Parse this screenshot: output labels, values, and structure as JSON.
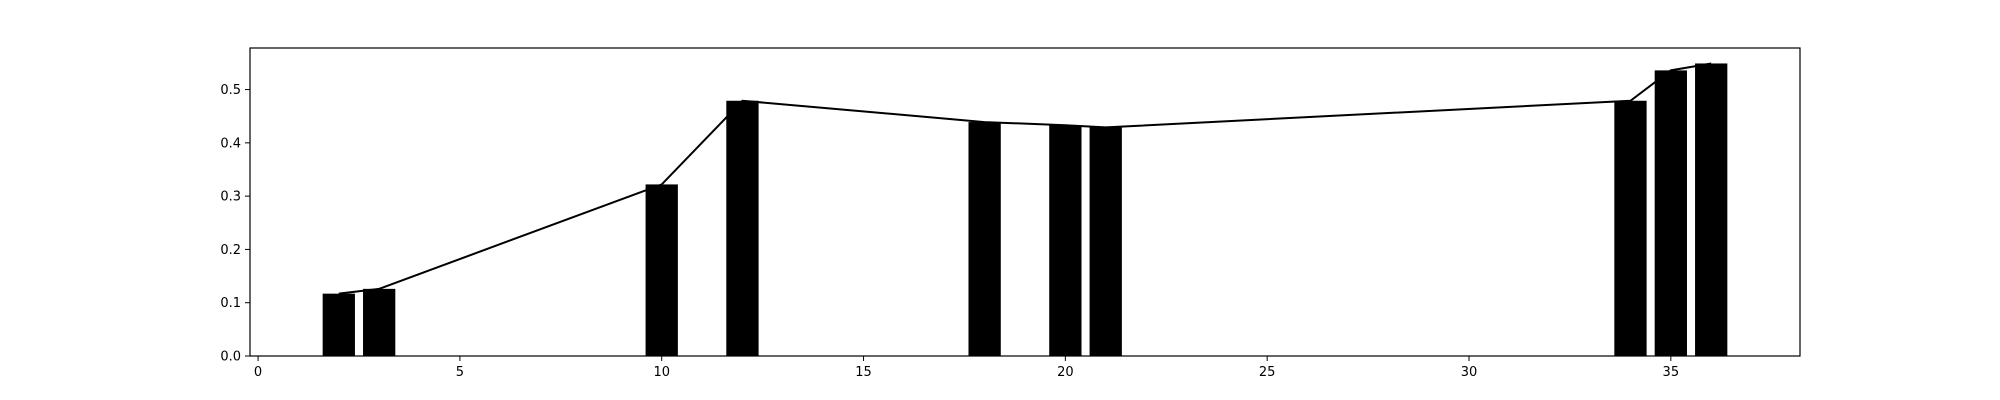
{
  "chart_data": {
    "type": "bar",
    "title": "",
    "xlabel": "",
    "ylabel": "",
    "xlim": [
      -0.2,
      38.2
    ],
    "ylim": [
      0,
      0.578
    ],
    "grid": false,
    "bar_width": 0.8,
    "bar_color": "#000000",
    "line_color": "#000000",
    "x_ticks": [
      0,
      5,
      10,
      15,
      20,
      25,
      30,
      35
    ],
    "y_ticks": [
      0.0,
      0.1,
      0.2,
      0.3,
      0.4,
      0.5
    ],
    "y_tick_labels": [
      "0.0",
      "0.1",
      "0.2",
      "0.3",
      "0.4",
      "0.5"
    ],
    "series": [
      {
        "x": [
          2,
          3,
          10,
          12,
          18,
          20,
          21,
          34,
          35,
          36
        ],
        "values": [
          0.117,
          0.126,
          0.322,
          0.479,
          0.439,
          0.433,
          0.429,
          0.479,
          0.536,
          0.549
        ]
      }
    ]
  }
}
